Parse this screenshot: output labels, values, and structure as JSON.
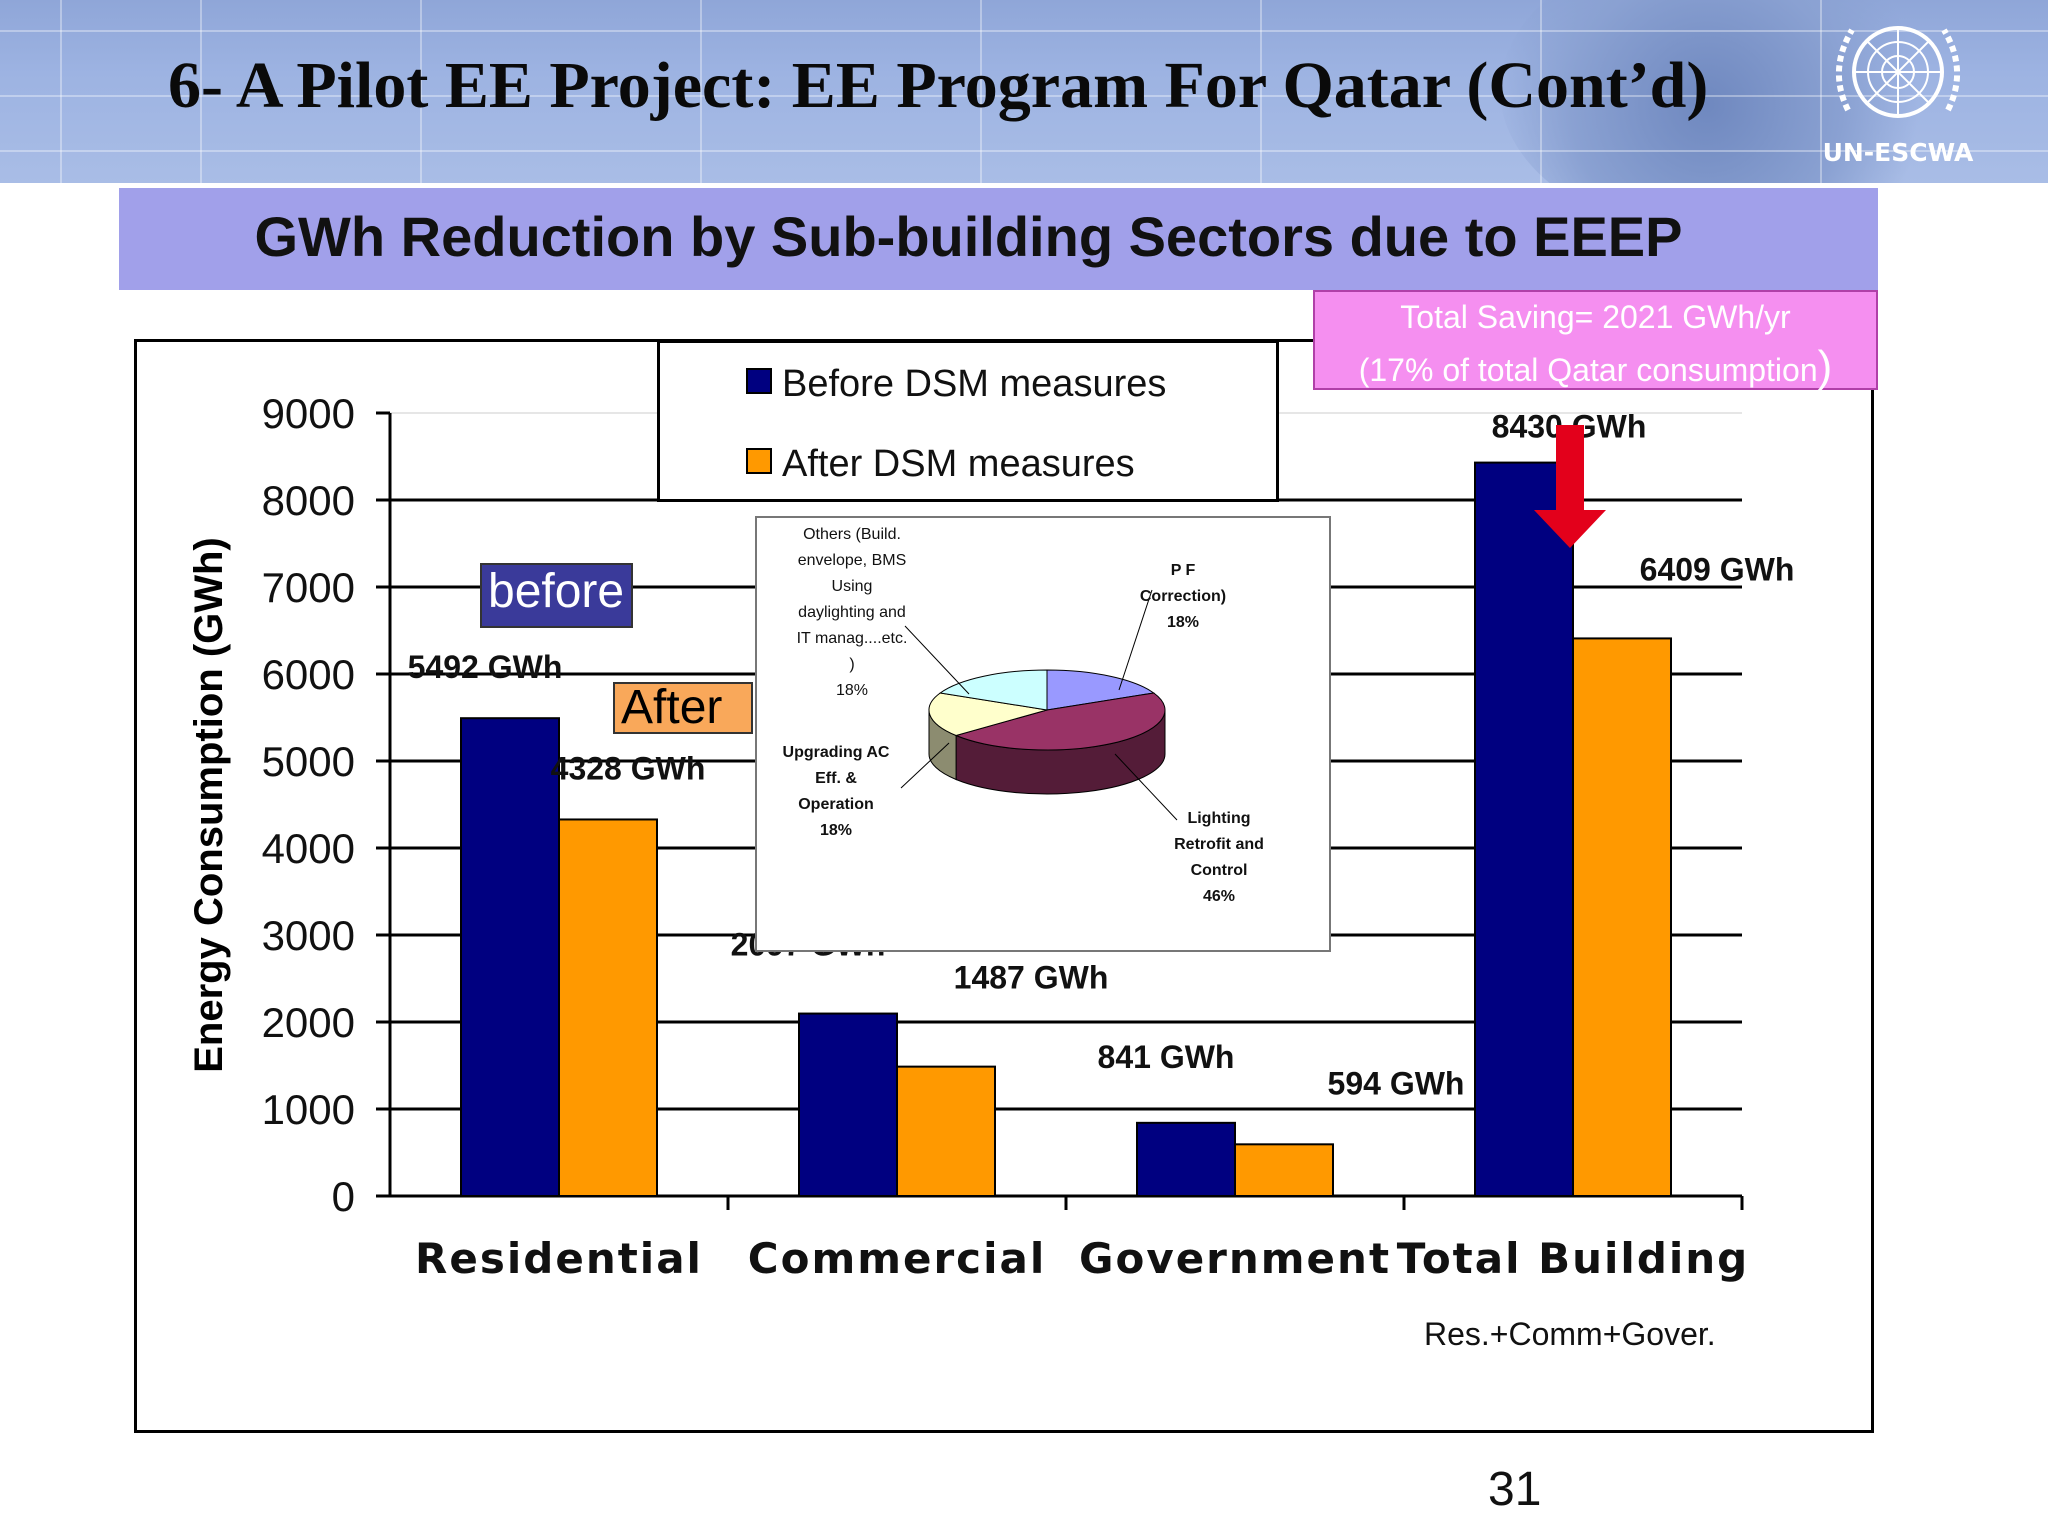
{
  "slide": {
    "title": "6-  A Pilot EE Project: EE Program For Qatar (Cont’d)",
    "logo_text": "UN-ESCWA",
    "subtitle": "GWh Reduction by Sub-building Sectors due to EEEP",
    "page_number": "31"
  },
  "savings_note": {
    "line1": "Total Saving= 2021 GWh/yr",
    "line2": "(17% of total Qatar consumption",
    "close_paren": ")"
  },
  "tags": {
    "before": "before",
    "after": "After"
  },
  "footnote": "Res.+Comm+Gover.",
  "colors": {
    "before": "#000080",
    "after": "#ff9900",
    "header": "#9db3e2",
    "subtitle_band": "#a1a0ea",
    "savings_box": "#f58ff0",
    "arrow": "#e3001b"
  },
  "chart_data": [
    {
      "type": "bar",
      "ylabel": "Energy Consumption (GWh)",
      "ylim": [
        0,
        9000
      ],
      "yticks": [
        0,
        1000,
        2000,
        3000,
        4000,
        5000,
        6000,
        7000,
        8000,
        9000
      ],
      "grid": true,
      "legend_position": "top-center",
      "categories": [
        "Residential",
        "Commercial",
        "Government",
        "Total Building"
      ],
      "series": [
        {
          "name": "Before DSM measures",
          "values": [
            5492,
            2097,
            841,
            8430
          ],
          "labels": [
            "5492  GWh",
            "2097  GWh",
            "841 GWh",
            "8430  GWh"
          ]
        },
        {
          "name": "After DSM measures",
          "values": [
            4328,
            1487,
            594,
            6409
          ],
          "labels": [
            "4328 GWh",
            "1487 GWh",
            "594  GWh",
            "6409 GWh"
          ]
        }
      ]
    },
    {
      "type": "pie",
      "slices": [
        {
          "label": [
            "P F",
            "Correction)",
            "18%"
          ],
          "value": 18,
          "color": "#9999ff"
        },
        {
          "label": [
            "Lighting",
            "Retrofit and",
            "Control",
            "46%"
          ],
          "value": 46,
          "color": "#993366"
        },
        {
          "label": [
            "Upgrading AC",
            "Eff. &",
            "Operation",
            "18%"
          ],
          "value": 18,
          "color": "#ffffcc"
        },
        {
          "label": [
            "Others (Build.",
            "envelope, BMS",
            "Using",
            "daylighting and",
            "IT manag....etc.",
            ")",
            "18%"
          ],
          "value": 18,
          "color": "#ccffff"
        }
      ]
    }
  ]
}
